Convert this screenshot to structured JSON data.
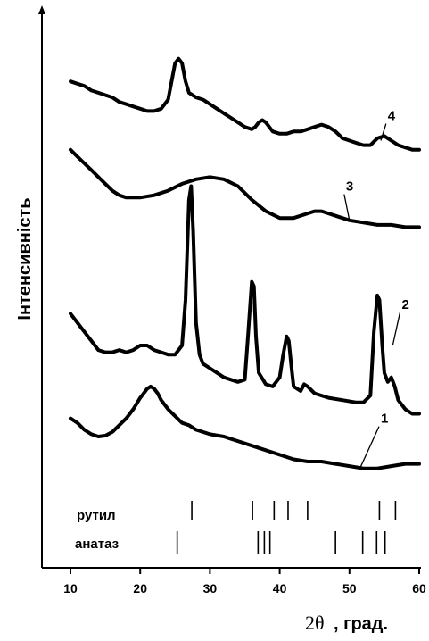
{
  "chart_data": {
    "type": "line",
    "ylabel": "Інтенсивність",
    "xlabel_symbol": "2θ",
    "xlabel_unit": ", град.",
    "xlim": [
      10,
      60
    ],
    "xticks": [
      10,
      20,
      30,
      40,
      50,
      60
    ],
    "ylim": [
      0,
      100
    ],
    "series": [
      {
        "name": "1",
        "label_at": [
          54.5,
          13
        ],
        "leader_to": [
          51.5,
          3
        ],
        "points": [
          [
            10,
            14
          ],
          [
            11,
            13
          ],
          [
            12,
            11.5
          ],
          [
            13,
            10.5
          ],
          [
            14,
            10
          ],
          [
            15,
            10.2
          ],
          [
            16,
            11
          ],
          [
            17,
            12.5
          ],
          [
            18,
            14
          ],
          [
            19,
            16
          ],
          [
            20,
            18.5
          ],
          [
            20.5,
            19.5
          ],
          [
            21,
            20.5
          ],
          [
            21.5,
            21
          ],
          [
            22,
            20.5
          ],
          [
            22.5,
            19.5
          ],
          [
            23,
            18
          ],
          [
            24,
            16
          ],
          [
            25,
            14.5
          ],
          [
            26,
            13
          ],
          [
            27,
            12.5
          ],
          [
            28,
            11.5
          ],
          [
            30,
            10.5
          ],
          [
            32,
            10
          ],
          [
            34,
            9
          ],
          [
            36,
            8
          ],
          [
            38,
            7
          ],
          [
            40,
            6
          ],
          [
            42,
            5
          ],
          [
            44,
            4.5
          ],
          [
            46,
            4.5
          ],
          [
            48,
            4
          ],
          [
            50,
            3.5
          ],
          [
            52,
            3
          ],
          [
            54,
            3
          ],
          [
            56,
            3.5
          ],
          [
            58,
            4
          ],
          [
            60,
            4
          ]
        ]
      },
      {
        "name": "2",
        "label_at": [
          57.5,
          38
        ],
        "leader_to": [
          56.2,
          30
        ],
        "points": [
          [
            10,
            37
          ],
          [
            11,
            35
          ],
          [
            12,
            33
          ],
          [
            13,
            31
          ],
          [
            14,
            29
          ],
          [
            15,
            28.5
          ],
          [
            16,
            28.5
          ],
          [
            17,
            29
          ],
          [
            18,
            28.5
          ],
          [
            19,
            29
          ],
          [
            20,
            30
          ],
          [
            21,
            30
          ],
          [
            22,
            29
          ],
          [
            23,
            28.5
          ],
          [
            24,
            28
          ],
          [
            25,
            28
          ],
          [
            26,
            30
          ],
          [
            26.5,
            40
          ],
          [
            27,
            62
          ],
          [
            27.3,
            65
          ],
          [
            27.6,
            55
          ],
          [
            28,
            35
          ],
          [
            28.5,
            28
          ],
          [
            29,
            26
          ],
          [
            30,
            25
          ],
          [
            31,
            24
          ],
          [
            32,
            23
          ],
          [
            33,
            22.5
          ],
          [
            34,
            22
          ],
          [
            35,
            22.5
          ],
          [
            35.5,
            33
          ],
          [
            36,
            44
          ],
          [
            36.3,
            43
          ],
          [
            36.6,
            32
          ],
          [
            37,
            24
          ],
          [
            38,
            21.5
          ],
          [
            39,
            21
          ],
          [
            40,
            23
          ],
          [
            40.5,
            28
          ],
          [
            41,
            32
          ],
          [
            41.3,
            31
          ],
          [
            41.7,
            25
          ],
          [
            42,
            21
          ],
          [
            43,
            20
          ],
          [
            43.5,
            21.5
          ],
          [
            44,
            21
          ],
          [
            45,
            19.5
          ],
          [
            47,
            18.5
          ],
          [
            49,
            18
          ],
          [
            51,
            17.5
          ],
          [
            52,
            17.5
          ],
          [
            53,
            19
          ],
          [
            53.5,
            33
          ],
          [
            54,
            41
          ],
          [
            54.3,
            40
          ],
          [
            54.7,
            30
          ],
          [
            55,
            24
          ],
          [
            55.5,
            22
          ],
          [
            56,
            23
          ],
          [
            56.5,
            21
          ],
          [
            57,
            18
          ],
          [
            58,
            16
          ],
          [
            59,
            15
          ],
          [
            60,
            15
          ]
        ]
      },
      {
        "name": "3",
        "label_at": [
          49.5,
          64
        ],
        "leader_to": [
          50,
          57.5
        ],
        "points": [
          [
            10,
            73
          ],
          [
            11,
            71.5
          ],
          [
            12,
            70
          ],
          [
            13,
            68.5
          ],
          [
            14,
            67
          ],
          [
            15,
            65.5
          ],
          [
            16,
            64
          ],
          [
            17,
            63
          ],
          [
            18,
            62.5
          ],
          [
            20,
            62.5
          ],
          [
            22,
            63
          ],
          [
            24,
            64
          ],
          [
            26,
            65.5
          ],
          [
            28,
            66.5
          ],
          [
            30,
            67
          ],
          [
            32,
            66.5
          ],
          [
            34,
            65
          ],
          [
            36,
            62
          ],
          [
            38,
            59.5
          ],
          [
            40,
            58
          ],
          [
            42,
            58
          ],
          [
            44,
            59
          ],
          [
            45,
            59.5
          ],
          [
            46,
            59.5
          ],
          [
            47,
            59
          ],
          [
            48,
            58.5
          ],
          [
            50,
            57.5
          ],
          [
            52,
            57
          ],
          [
            54,
            56.5
          ],
          [
            56,
            56.5
          ],
          [
            58,
            56
          ],
          [
            60,
            56
          ]
        ]
      },
      {
        "name": "4",
        "label_at": [
          55.5,
          79.5
        ],
        "leader_to": [
          54.5,
          75
        ],
        "points": [
          [
            10,
            88
          ],
          [
            11,
            87.5
          ],
          [
            12,
            87
          ],
          [
            13,
            86
          ],
          [
            14,
            85.5
          ],
          [
            15,
            85
          ],
          [
            16,
            84.5
          ],
          [
            17,
            83.5
          ],
          [
            18,
            83
          ],
          [
            19,
            82.5
          ],
          [
            20,
            82
          ],
          [
            21,
            81.5
          ],
          [
            22,
            81.5
          ],
          [
            23,
            82
          ],
          [
            24,
            84
          ],
          [
            24.5,
            88
          ],
          [
            25,
            92
          ],
          [
            25.5,
            93
          ],
          [
            26,
            92
          ],
          [
            26.5,
            88
          ],
          [
            27,
            85.5
          ],
          [
            28,
            84.5
          ],
          [
            29,
            84
          ],
          [
            30,
            83
          ],
          [
            31,
            82
          ],
          [
            32,
            81
          ],
          [
            33,
            80
          ],
          [
            34,
            79
          ],
          [
            35,
            78
          ],
          [
            36,
            77.5
          ],
          [
            36.5,
            78
          ],
          [
            37,
            79
          ],
          [
            37.5,
            79.5
          ],
          [
            38,
            79
          ],
          [
            38.5,
            78
          ],
          [
            39,
            77
          ],
          [
            40,
            76.5
          ],
          [
            41,
            76.5
          ],
          [
            42,
            77
          ],
          [
            43,
            77
          ],
          [
            44,
            77.5
          ],
          [
            45,
            78
          ],
          [
            46,
            78.5
          ],
          [
            47,
            78
          ],
          [
            48,
            77
          ],
          [
            49,
            75.5
          ],
          [
            50,
            75
          ],
          [
            51,
            74.5
          ],
          [
            52,
            74
          ],
          [
            53,
            74
          ],
          [
            54,
            75.5
          ],
          [
            55,
            76
          ],
          [
            56,
            75
          ],
          [
            57,
            74
          ],
          [
            58,
            73.5
          ],
          [
            59,
            73
          ],
          [
            60,
            73
          ]
        ]
      }
    ],
    "reference_lines": {
      "rutile_label": "рутил",
      "rutile": [
        27.4,
        36.1,
        39.2,
        41.2,
        44.0,
        54.3,
        56.6
      ],
      "anatase_label": "анатаз",
      "anatase": [
        25.3,
        36.9,
        37.8,
        38.6,
        48.0,
        51.9,
        53.9,
        55.1
      ]
    }
  }
}
